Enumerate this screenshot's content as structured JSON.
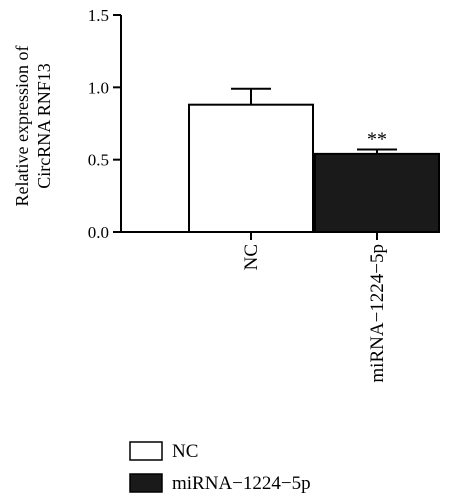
{
  "chart_data": {
    "type": "bar",
    "categories": [
      "NC",
      "miRNA-1224-5p"
    ],
    "tick_labels": [
      "NC",
      "miRNA−1224−5p"
    ],
    "values": [
      0.88,
      0.54
    ],
    "errors": [
      0.11,
      0.03
    ],
    "annotations": [
      "",
      "**"
    ],
    "bar_colors": [
      "#ffffff",
      "#1a1a1a"
    ],
    "title": "",
    "xlabel": "",
    "ylabel_lines": [
      "Relative expression of",
      "CircRNA RNF13"
    ],
    "ylim": [
      0,
      1.5
    ],
    "yticks": [
      0.0,
      0.5,
      1.0,
      1.5
    ],
    "ytick_labels": [
      "0.0",
      "0.5",
      "1.0",
      "1.5"
    ],
    "grid": false,
    "legend_placement": "bottom-left",
    "legend": [
      {
        "label": "NC",
        "color": "#ffffff"
      },
      {
        "label": "miRNA−1224−5p",
        "color": "#1a1a1a"
      }
    ]
  }
}
